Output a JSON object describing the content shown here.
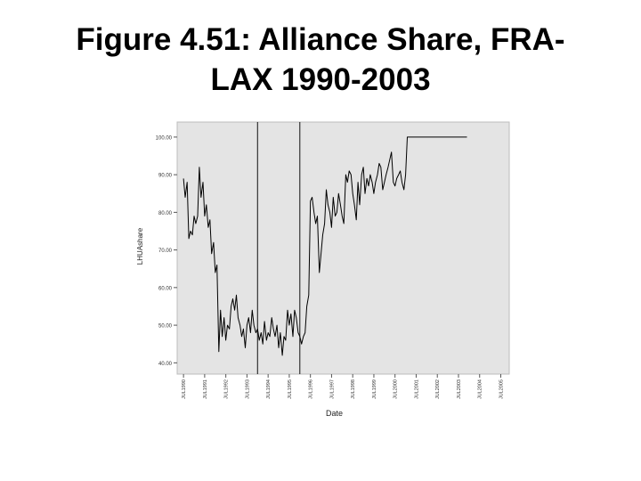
{
  "slide": {
    "title_line1": "Figure 4.51: Alliance Share, FRA-",
    "title_line2": "LAX 1990-2003"
  },
  "chart_data": {
    "type": "line",
    "title": "Figure 4.51: Alliance Share, FRA-LAX 1990-2003",
    "xlabel": "Date",
    "ylabel": "LHUAshare",
    "ylim": [
      37,
      104
    ],
    "y_ticks": [
      40,
      50,
      60,
      70,
      80,
      90,
      100
    ],
    "y_tick_labels": [
      "40.00",
      "50.00",
      "60.00",
      "70.00",
      "80.00",
      "90.00",
      "100.00"
    ],
    "x_tick_labels": [
      "JUL1990",
      "JUL1991",
      "JUL1992",
      "JUL1993",
      "JUL1994",
      "JUL1995",
      "JUL1996",
      "JUL1997",
      "JUL1998",
      "JUL1999",
      "JUL2000",
      "JUL2001",
      "JUL2002",
      "JUL2003",
      "JUL2004",
      "JUL2005"
    ],
    "x_ticks": [
      1990.5,
      1991.5,
      1992.5,
      1993.5,
      1994.5,
      1995.5,
      1996.5,
      1997.5,
      1998.5,
      1999.5,
      2000.5,
      2001.5,
      2002.5,
      2003.5,
      2004.5,
      2005.5
    ],
    "xlim": [
      1990.2,
      2005.9
    ],
    "reference_lines_x": [
      1994.0,
      1996.0
    ],
    "grid": false,
    "background": "#e4e4e4",
    "line_color": "#000000",
    "series": [
      {
        "x": [
          1990.5,
          1990.58,
          1990.67,
          1990.75,
          1990.83,
          1990.92,
          1991.0,
          1991.08,
          1991.17,
          1991.25,
          1991.33,
          1991.42,
          1991.5,
          1991.58,
          1991.67,
          1991.75,
          1991.83,
          1991.92,
          1992.0,
          1992.08,
          1992.17,
          1992.25,
          1992.33,
          1992.42,
          1992.5,
          1992.58,
          1992.67,
          1992.75,
          1992.83,
          1992.92,
          1993.0,
          1993.08,
          1993.17,
          1993.25,
          1993.33,
          1993.42,
          1993.5,
          1993.58,
          1993.67,
          1993.75,
          1993.83,
          1993.92,
          1994.0,
          1994.08,
          1994.17,
          1994.25,
          1994.33,
          1994.42,
          1994.5,
          1994.58,
          1994.67,
          1994.75,
          1994.83,
          1994.92,
          1995.0,
          1995.08,
          1995.17,
          1995.25,
          1995.33,
          1995.42,
          1995.5,
          1995.58,
          1995.67,
          1995.75,
          1995.83,
          1995.92,
          1996.0,
          1996.08,
          1996.17,
          1996.25,
          1996.33,
          1996.42,
          1996.5,
          1996.58,
          1996.67,
          1996.75,
          1996.83,
          1996.92,
          1997.0,
          1997.08,
          1997.17,
          1997.25,
          1997.33,
          1997.42,
          1997.5,
          1997.58,
          1997.67,
          1997.75,
          1997.83,
          1997.92,
          1998.0,
          1998.08,
          1998.17,
          1998.25,
          1998.33,
          1998.42,
          1998.5,
          1998.58,
          1998.67,
          1998.75,
          1998.83,
          1998.92,
          1999.0,
          1999.08,
          1999.17,
          1999.25,
          1999.33,
          1999.42,
          1999.5,
          1999.58,
          1999.67,
          1999.75,
          1999.83,
          1999.92,
          2000.0,
          2000.08,
          2000.17,
          2000.25,
          2000.33,
          2000.42,
          2000.5,
          2000.58,
          2000.67,
          2000.75,
          2000.83,
          2000.92,
          2001.0,
          2001.08,
          2001.17,
          2001.25,
          2001.5,
          2002.0,
          2002.5,
          2003.0,
          2003.5,
          2003.9
        ],
        "y": [
          89,
          84,
          88,
          73,
          75,
          74,
          79,
          77,
          79,
          92,
          84,
          88,
          79,
          82,
          76,
          78,
          69,
          72,
          64,
          66,
          43,
          54,
          47,
          52,
          46,
          50,
          49,
          55,
          57,
          54,
          58,
          52,
          50,
          47,
          49,
          44,
          50,
          52,
          48,
          54,
          50,
          48,
          49,
          46,
          48,
          45,
          51,
          46,
          48,
          47,
          52,
          49,
          47,
          50,
          44,
          48,
          42,
          47,
          46,
          54,
          50,
          53,
          47,
          54,
          52,
          48,
          47,
          45,
          47,
          48,
          55,
          58,
          83,
          84,
          80,
          77,
          79,
          64,
          69,
          74,
          77,
          86,
          82,
          80,
          76,
          84,
          79,
          80,
          85,
          82,
          79,
          77,
          90,
          88,
          91,
          90,
          85,
          82,
          78,
          88,
          82,
          90,
          92,
          85,
          89,
          87,
          90,
          88,
          85,
          88,
          90,
          93,
          92,
          86,
          88,
          90,
          92,
          94,
          96,
          88,
          87,
          89,
          90,
          91,
          88,
          86,
          90,
          100,
          100,
          100,
          100,
          100,
          100,
          100,
          100,
          100
        ]
      }
    ]
  }
}
